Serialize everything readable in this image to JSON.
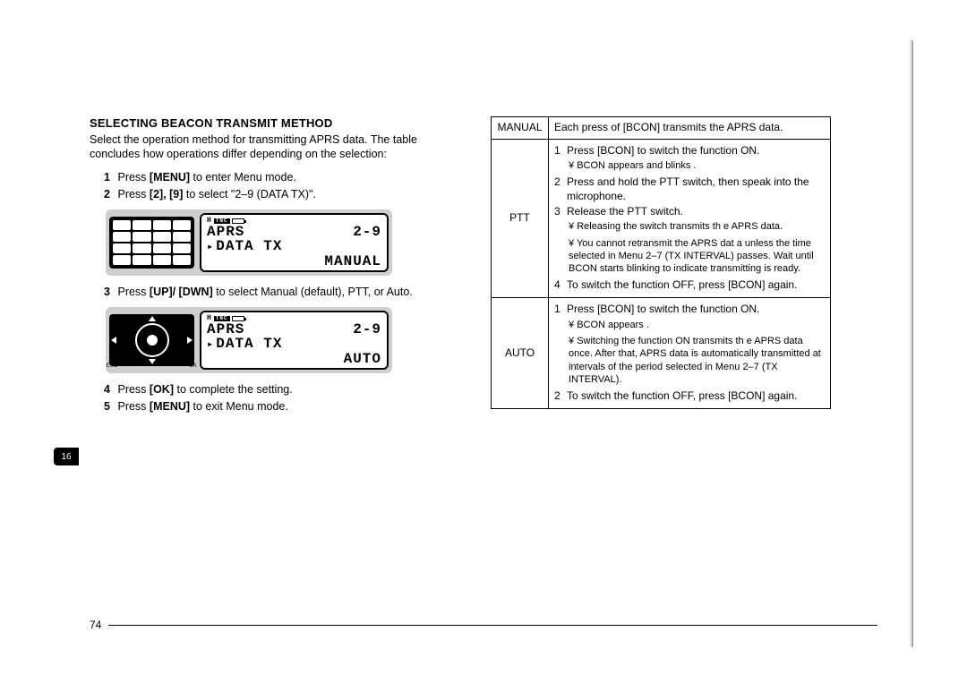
{
  "page_number": "74",
  "section_tab": "16",
  "heading": "SELECTING BEACON TRANSMIT METHOD",
  "intro": "Select the operation method for transmitting APRS data. The table concludes how operations differ depending on the selection:",
  "steps": {
    "s1": {
      "n": "1",
      "pre": "Press ",
      "bold": "[MENU]",
      "post": " to enter Menu mode."
    },
    "s2": {
      "n": "2",
      "pre": "Press ",
      "bold": "[2], [9]",
      "post": " to select \"2–9 (DATA TX)\"."
    },
    "s3": {
      "n": "3",
      "pre": "Press ",
      "bold": "[UP]/ [DWN]",
      "post": " to select Manual (default), PTT, or Auto."
    },
    "s4": {
      "n": "4",
      "pre": "Press ",
      "bold": "[OK]",
      "post": " to complete the setting."
    },
    "s5": {
      "n": "5",
      "pre": "Press ",
      "bold": "[MENU]",
      "post": " to exit Menu mode."
    }
  },
  "lcd": {
    "status_left": "H",
    "status_tnc": "TNC",
    "line1_left": "APRS",
    "line1_right": "2-9",
    "line2_left": "DATA TX",
    "screen1_mode": "MANUAL",
    "screen2_mode": "AUTO"
  },
  "table": {
    "rows": {
      "manual": {
        "label": "MANUAL",
        "text": "Each press of [BCON] transmits the APRS data."
      },
      "ptt": {
        "label": "PTT",
        "i1": "Press [BCON] to switch the function ON.",
        "i1_sub1": "BCON  appears and blinks .",
        "i2": "Press and hold the PTT switch, then speak into the microphone.",
        "i3": "Release the PTT switch.",
        "i3_sub1": "Releasing the switch transmits th e APRS data.",
        "i3_sub2": "You cannot retransmit the APRS dat a unless the time selected in Menu 2–7 (TX INTERVAL) passes.  Wait until BCON  starts blinking to indicate transmitting is ready.",
        "i4": "To switch the function OFF, press [BCON] again."
      },
      "auto": {
        "label": "AUTO",
        "i1": "Press [BCON] to switch the function ON.",
        "i1_sub1": "BCON  appears .",
        "i1_sub2": "Switching the function ON transmits th e APRS data once.  After that, APRS data is automatically transmitted at intervals of the period selected in Menu 2–7 (TX INTERVAL).",
        "i2": "To switch the function OFF, press [BCON] again."
      }
    }
  }
}
